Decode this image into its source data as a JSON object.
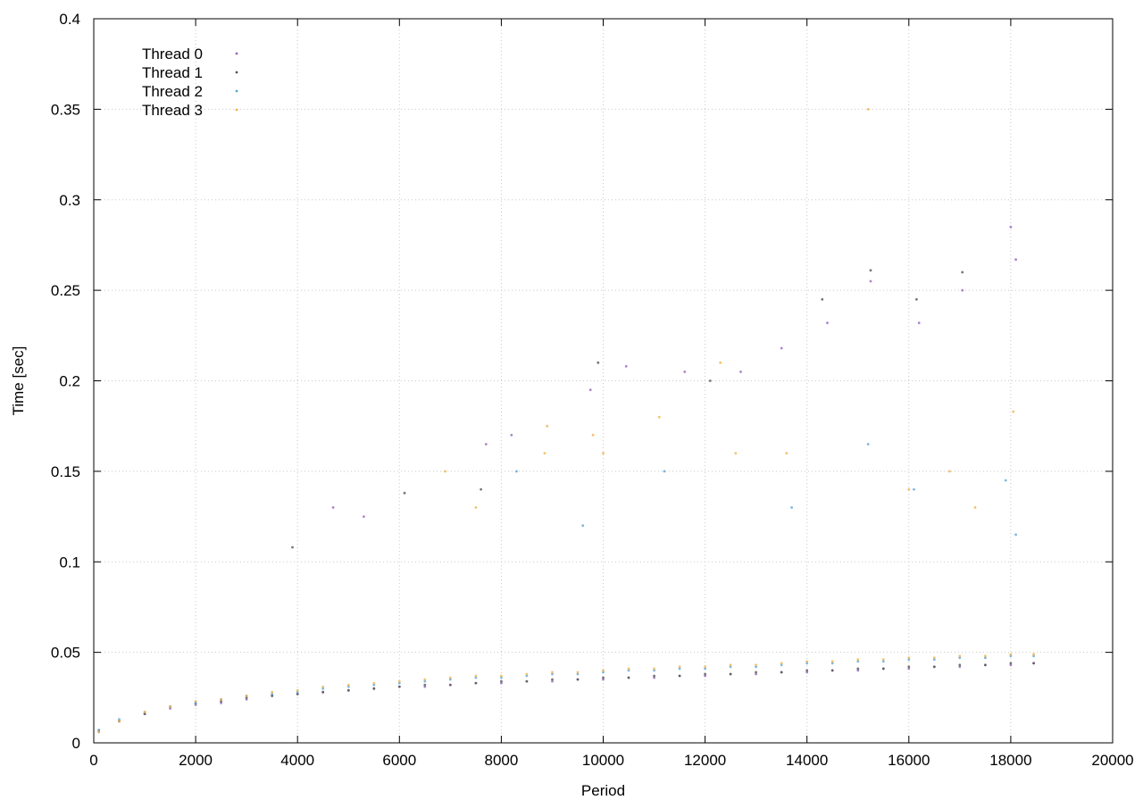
{
  "chart_data": {
    "type": "scatter",
    "title": "",
    "xlabel": "Period",
    "ylabel": "Time [sec]",
    "xlim": [
      0,
      20000
    ],
    "ylim": [
      0,
      0.4
    ],
    "xticks": [
      0,
      2000,
      4000,
      6000,
      8000,
      10000,
      12000,
      14000,
      16000,
      18000,
      20000
    ],
    "yticks": [
      0,
      0.05,
      0.1,
      0.15,
      0.2,
      0.25,
      0.3,
      0.35,
      0.4
    ],
    "xtick_labels": [
      "0",
      "2000",
      "4000",
      "6000",
      "8000",
      "10000",
      "12000",
      "14000",
      "16000",
      "18000",
      "20000"
    ],
    "ytick_labels": [
      "0",
      "0.05",
      "0.1",
      "0.15",
      "0.2",
      "0.25",
      "0.3",
      "0.35",
      "0.4"
    ],
    "grid": true,
    "legend_position": "top-left",
    "series": [
      {
        "name": "Thread 0",
        "color": "#9467bd",
        "marker": "dot",
        "points": [
          [
            100,
            0.006
          ],
          [
            500,
            0.012
          ],
          [
            1000,
            0.016
          ],
          [
            1500,
            0.019
          ],
          [
            2000,
            0.021
          ],
          [
            2500,
            0.022
          ],
          [
            3000,
            0.024
          ],
          [
            3500,
            0.026
          ],
          [
            4000,
            0.027
          ],
          [
            4500,
            0.028
          ],
          [
            5000,
            0.029
          ],
          [
            5500,
            0.03
          ],
          [
            6000,
            0.031
          ],
          [
            6500,
            0.031
          ],
          [
            7000,
            0.032
          ],
          [
            7500,
            0.033
          ],
          [
            8000,
            0.033
          ],
          [
            8500,
            0.034
          ],
          [
            9000,
            0.034
          ],
          [
            9500,
            0.035
          ],
          [
            10000,
            0.035
          ],
          [
            10500,
            0.036
          ],
          [
            11000,
            0.036
          ],
          [
            11500,
            0.037
          ],
          [
            12000,
            0.037
          ],
          [
            12500,
            0.038
          ],
          [
            13000,
            0.038
          ],
          [
            13500,
            0.039
          ],
          [
            14000,
            0.039
          ],
          [
            14500,
            0.04
          ],
          [
            15000,
            0.04
          ],
          [
            15500,
            0.041
          ],
          [
            16000,
            0.041
          ],
          [
            16500,
            0.042
          ],
          [
            17000,
            0.042
          ],
          [
            17500,
            0.043
          ],
          [
            18000,
            0.043
          ],
          [
            18450,
            0.044
          ],
          [
            4700,
            0.13
          ],
          [
            5300,
            0.125
          ],
          [
            7700,
            0.165
          ],
          [
            8200,
            0.17
          ],
          [
            9750,
            0.195
          ],
          [
            10450,
            0.208
          ],
          [
            11600,
            0.205
          ],
          [
            12700,
            0.205
          ],
          [
            13500,
            0.218
          ],
          [
            14400,
            0.232
          ],
          [
            15250,
            0.255
          ],
          [
            16200,
            0.232
          ],
          [
            17050,
            0.25
          ],
          [
            18100,
            0.267
          ],
          [
            18000,
            0.285
          ]
        ]
      },
      {
        "name": "Thread 1",
        "color": "#555555",
        "marker": "dot",
        "points": [
          [
            100,
            0.007
          ],
          [
            500,
            0.012
          ],
          [
            1000,
            0.016
          ],
          [
            1500,
            0.02
          ],
          [
            2000,
            0.022
          ],
          [
            2500,
            0.023
          ],
          [
            3000,
            0.025
          ],
          [
            3500,
            0.026
          ],
          [
            4000,
            0.027
          ],
          [
            4500,
            0.028
          ],
          [
            5000,
            0.029
          ],
          [
            5500,
            0.03
          ],
          [
            6000,
            0.031
          ],
          [
            6500,
            0.032
          ],
          [
            7000,
            0.032
          ],
          [
            7500,
            0.033
          ],
          [
            8000,
            0.034
          ],
          [
            8500,
            0.034
          ],
          [
            9000,
            0.035
          ],
          [
            9500,
            0.035
          ],
          [
            10000,
            0.036
          ],
          [
            10500,
            0.036
          ],
          [
            11000,
            0.037
          ],
          [
            11500,
            0.037
          ],
          [
            12000,
            0.038
          ],
          [
            12500,
            0.038
          ],
          [
            13000,
            0.039
          ],
          [
            13500,
            0.039
          ],
          [
            14000,
            0.04
          ],
          [
            14500,
            0.04
          ],
          [
            15000,
            0.041
          ],
          [
            15500,
            0.041
          ],
          [
            16000,
            0.042
          ],
          [
            16500,
            0.042
          ],
          [
            17000,
            0.043
          ],
          [
            17500,
            0.043
          ],
          [
            18000,
            0.044
          ],
          [
            18450,
            0.044
          ],
          [
            3900,
            0.108
          ],
          [
            6100,
            0.138
          ],
          [
            7600,
            0.14
          ],
          [
            9900,
            0.21
          ],
          [
            12100,
            0.2
          ],
          [
            14300,
            0.245
          ],
          [
            15250,
            0.261
          ],
          [
            16150,
            0.245
          ],
          [
            17050,
            0.26
          ]
        ]
      },
      {
        "name": "Thread 2",
        "color": "#5aa8d8",
        "marker": "dot",
        "points": [
          [
            100,
            0.007
          ],
          [
            500,
            0.013
          ],
          [
            1000,
            0.017
          ],
          [
            1500,
            0.02
          ],
          [
            2000,
            0.022
          ],
          [
            2500,
            0.024
          ],
          [
            3000,
            0.026
          ],
          [
            3500,
            0.027
          ],
          [
            4000,
            0.028
          ],
          [
            4500,
            0.03
          ],
          [
            5000,
            0.031
          ],
          [
            5500,
            0.032
          ],
          [
            6000,
            0.033
          ],
          [
            6500,
            0.034
          ],
          [
            7000,
            0.035
          ],
          [
            7500,
            0.036
          ],
          [
            8000,
            0.036
          ],
          [
            8500,
            0.037
          ],
          [
            9000,
            0.038
          ],
          [
            9500,
            0.038
          ],
          [
            10000,
            0.039
          ],
          [
            10500,
            0.04
          ],
          [
            11000,
            0.04
          ],
          [
            11500,
            0.041
          ],
          [
            12000,
            0.041
          ],
          [
            12500,
            0.042
          ],
          [
            13000,
            0.042
          ],
          [
            13500,
            0.043
          ],
          [
            14000,
            0.044
          ],
          [
            14500,
            0.044
          ],
          [
            15000,
            0.045
          ],
          [
            15500,
            0.045
          ],
          [
            16000,
            0.046
          ],
          [
            16500,
            0.046
          ],
          [
            17000,
            0.047
          ],
          [
            17500,
            0.047
          ],
          [
            18000,
            0.048
          ],
          [
            18450,
            0.048
          ],
          [
            8300,
            0.15
          ],
          [
            9600,
            0.12
          ],
          [
            11200,
            0.15
          ],
          [
            13700,
            0.13
          ],
          [
            15200,
            0.165
          ],
          [
            16100,
            0.14
          ],
          [
            17900,
            0.145
          ],
          [
            18100,
            0.115
          ]
        ]
      },
      {
        "name": "Thread 3",
        "color": "#f0b24a",
        "marker": "dot",
        "points": [
          [
            100,
            0.006
          ],
          [
            500,
            0.012
          ],
          [
            1000,
            0.017
          ],
          [
            1500,
            0.02
          ],
          [
            2000,
            0.023
          ],
          [
            2500,
            0.024
          ],
          [
            3000,
            0.026
          ],
          [
            3500,
            0.028
          ],
          [
            4000,
            0.029
          ],
          [
            4500,
            0.031
          ],
          [
            5000,
            0.032
          ],
          [
            5500,
            0.033
          ],
          [
            6000,
            0.034
          ],
          [
            6500,
            0.035
          ],
          [
            7000,
            0.036
          ],
          [
            7500,
            0.037
          ],
          [
            8000,
            0.037
          ],
          [
            8500,
            0.038
          ],
          [
            9000,
            0.039
          ],
          [
            9500,
            0.039
          ],
          [
            10000,
            0.04
          ],
          [
            10500,
            0.041
          ],
          [
            11000,
            0.041
          ],
          [
            11500,
            0.042
          ],
          [
            12000,
            0.042
          ],
          [
            12500,
            0.043
          ],
          [
            13000,
            0.043
          ],
          [
            13500,
            0.044
          ],
          [
            14000,
            0.045
          ],
          [
            14500,
            0.045
          ],
          [
            15000,
            0.046
          ],
          [
            15500,
            0.046
          ],
          [
            16000,
            0.047
          ],
          [
            16500,
            0.047
          ],
          [
            17000,
            0.048
          ],
          [
            17500,
            0.048
          ],
          [
            18000,
            0.049
          ],
          [
            18450,
            0.049
          ],
          [
            8900,
            0.175
          ],
          [
            8850,
            0.16
          ],
          [
            9800,
            0.17
          ],
          [
            10000,
            0.16
          ],
          [
            11100,
            0.18
          ],
          [
            12300,
            0.21
          ],
          [
            12600,
            0.16
          ],
          [
            15200,
            0.35
          ],
          [
            13600,
            0.16
          ],
          [
            16000,
            0.14
          ],
          [
            16800,
            0.15
          ],
          [
            17300,
            0.13
          ],
          [
            18050,
            0.183
          ],
          [
            6900,
            0.15
          ],
          [
            7500,
            0.13
          ]
        ]
      }
    ]
  }
}
